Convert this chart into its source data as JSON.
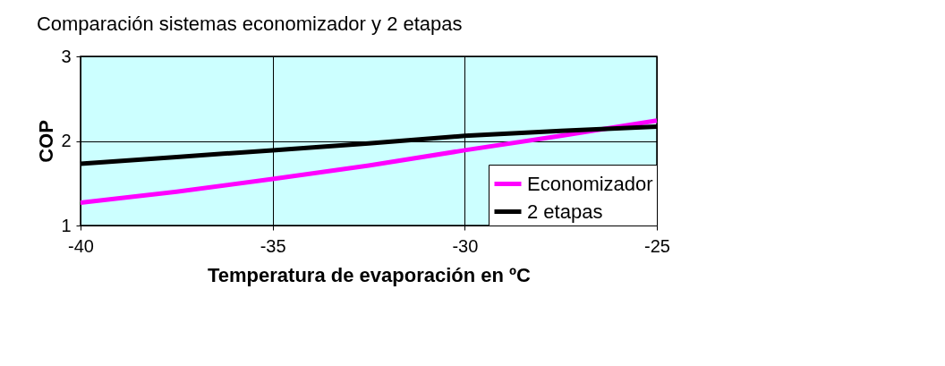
{
  "chart_data": {
    "type": "line",
    "title": "Comparación sistemas economizador y 2 etapas",
    "xlabel": "Temperatura de evaporación en ºC",
    "ylabel": "COP",
    "x": [
      -40,
      -37.5,
      -35,
      -32.5,
      -30,
      -27.5,
      -25
    ],
    "series": [
      {
        "name": "Economizador",
        "color": "#ff00ff",
        "values": [
          1.27,
          1.4,
          1.55,
          1.71,
          1.89,
          2.06,
          2.24
        ]
      },
      {
        "name": "2 etapas",
        "color": "#000000",
        "values": [
          1.73,
          1.81,
          1.89,
          1.97,
          2.06,
          2.12,
          2.17
        ]
      }
    ],
    "xlim": [
      -40,
      -25
    ],
    "xticks": [
      -40,
      -35,
      -30,
      -25
    ],
    "ylim": [
      1,
      3
    ],
    "yticks": [
      1,
      2,
      3
    ],
    "grid": true,
    "legend": "bottom right",
    "marker": "none",
    "line_style": "solid"
  }
}
